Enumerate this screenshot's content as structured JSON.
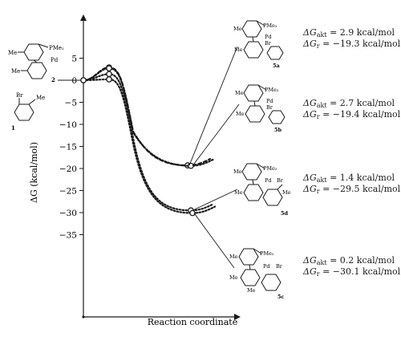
{
  "chart_data": {
    "type": "line",
    "ylabel": "ΔG (kcal/mol)",
    "xlabel": "Reaction coordinate",
    "ylim": [
      -38,
      10
    ],
    "yticks": [
      5,
      0,
      -5,
      -10,
      -15,
      -20,
      -25,
      -30,
      -35
    ],
    "series": [
      {
        "id": "5a",
        "ts": 2.9,
        "product": -19.3,
        "style": "dashed"
      },
      {
        "id": "5b",
        "ts": 2.7,
        "product": -19.4,
        "style": "dotted"
      },
      {
        "id": "5d",
        "ts": 1.4,
        "product": -29.5,
        "style": "dotted"
      },
      {
        "id": "5c",
        "ts": 0.2,
        "product": -30.1,
        "style": "dotted"
      }
    ],
    "annotations": [
      {
        "id": "5a",
        "act_label": "ΔG",
        "act_sub": "akt",
        "act_value": "= 2.9 kcal/mol",
        "r_label": "ΔG",
        "r_sub": "r",
        "r_value": "= −19.3 kcal/mol"
      },
      {
        "id": "5b",
        "act_label": "ΔG",
        "act_sub": "akt",
        "act_value": "= 2.7 kcal/mol",
        "r_label": "ΔG",
        "r_sub": "r",
        "r_value": "= −19.4 kcal/mol"
      },
      {
        "id": "5d",
        "act_label": "ΔG",
        "act_sub": "akt",
        "act_value": "= 1.4 kcal/mol",
        "r_label": "ΔG",
        "r_sub": "r",
        "r_value": "= −29.5 kcal/mol"
      },
      {
        "id": "5c",
        "act_label": "ΔG",
        "act_sub": "akt",
        "act_value": "= 0.2 kcal/mol",
        "r_label": "ΔG",
        "r_sub": "r",
        "r_value": "= −30.1 kcal/mol"
      }
    ]
  },
  "structures": {
    "reactant_pd": {
      "label": "2",
      "pme2": "PMe₂",
      "pd": "Pd",
      "me_top": "Me",
      "me_bottom": "Me"
    },
    "reactant_arbr": {
      "label": "1",
      "br": "Br",
      "me": "Me"
    },
    "s5a": {
      "label": "5a",
      "pme2": "PMe₂",
      "pd": "Pd",
      "br": "Br",
      "me_top": "Me",
      "me_bottom": "Me"
    },
    "s5b": {
      "label": "5b",
      "pme2": "PMe₂",
      "pd": "Pd",
      "br": "Br",
      "me_top": "Me",
      "me_bottom": "Me"
    },
    "s5d": {
      "label": "5d",
      "pme2": "PMe₂",
      "pd": "Pd",
      "br": "Br",
      "me_top": "Me",
      "me_bottom": "Me",
      "me_aryl": "Me"
    },
    "s5c": {
      "label": "5c",
      "pme2": "PMe₂",
      "pd": "Pd",
      "br": "Br",
      "me_top": "Me",
      "me_bottom": "Me",
      "me_aryl": "Me"
    }
  }
}
